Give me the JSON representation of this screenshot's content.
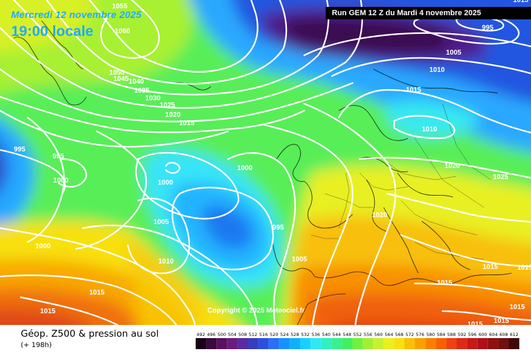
{
  "header": {
    "date_line": "Mercredi 12 novembre 2025",
    "time_line": "19:00 locale"
  },
  "run_info": "Run GEM 12 Z du Mardi 4 novembre 2025",
  "copyright": "Copyright © 2025 Meteociel.fr",
  "footer": {
    "title": "Géop. Z500 & pression au sol",
    "lead_time": "(+ 198h)"
  },
  "legend": {
    "values": [
      "492",
      "496",
      "500",
      "504",
      "508",
      "512",
      "516",
      "520",
      "524",
      "528",
      "532",
      "536",
      "540",
      "544",
      "548",
      "552",
      "556",
      "560",
      "564",
      "568",
      "572",
      "576",
      "580",
      "584",
      "588",
      "592",
      "596",
      "600",
      "604",
      "608",
      "612"
    ],
    "colors": [
      "#1a0018",
      "#3a0a3a",
      "#5a1060",
      "#6a1a80",
      "#5a2aa0",
      "#3a3cc0",
      "#2a50e0",
      "#2870f8",
      "#1890ff",
      "#10b0ff",
      "#18d0ff",
      "#30e8f0",
      "#30f0c0",
      "#38f090",
      "#40f060",
      "#70f040",
      "#a0f030",
      "#c8f030",
      "#e8f020",
      "#f8e010",
      "#f8c008",
      "#f8a000",
      "#f88000",
      "#f86000",
      "#f04010",
      "#e02818",
      "#c81818",
      "#b01018",
      "#901010",
      "#701010",
      "#400808"
    ]
  },
  "isobar_labels": [
    {
      "text": "1055",
      "key": "l1"
    },
    {
      "text": "1060",
      "key": "l2"
    },
    {
      "text": "1050",
      "key": "l3"
    },
    {
      "text": "1045",
      "key": "l4"
    },
    {
      "text": "1040",
      "key": "l5"
    },
    {
      "text": "1035",
      "key": "l6"
    },
    {
      "text": "1030",
      "key": "l7"
    },
    {
      "text": "1025",
      "key": "l8"
    },
    {
      "text": "1020",
      "key": "l9"
    },
    {
      "text": "1015",
      "key": "l10"
    },
    {
      "text": "995",
      "key": "l11"
    },
    {
      "text": "995",
      "key": "l12"
    },
    {
      "text": "1000",
      "key": "l13"
    },
    {
      "text": "1000",
      "key": "l14"
    },
    {
      "text": "1000",
      "key": "l15"
    },
    {
      "text": "1005",
      "key": "l16"
    },
    {
      "text": "995",
      "key": "l17"
    },
    {
      "text": "1005",
      "key": "l18"
    },
    {
      "text": "1010",
      "key": "l19"
    },
    {
      "text": "1000",
      "key": "l20"
    },
    {
      "text": "1015",
      "key": "l21"
    },
    {
      "text": "1015",
      "key": "l22"
    },
    {
      "text": "995",
      "key": "l23"
    },
    {
      "text": "1005",
      "key": "l24"
    },
    {
      "text": "1010",
      "key": "l25"
    },
    {
      "text": "1015",
      "key": "l26"
    },
    {
      "text": "1010",
      "key": "l27"
    },
    {
      "text": "1020",
      "key": "l28"
    },
    {
      "text": "1025",
      "key": "l29"
    },
    {
      "text": "1020",
      "key": "l30"
    },
    {
      "text": "1015",
      "key": "l31"
    },
    {
      "text": "1015",
      "key": "l32"
    },
    {
      "text": "1015",
      "key": "l33"
    },
    {
      "text": "1015",
      "key": "l34"
    },
    {
      "text": "1015",
      "key": "l35"
    },
    {
      "text": "1015",
      "key": "l36"
    },
    {
      "text": "1015",
      "key": "l37"
    }
  ]
}
